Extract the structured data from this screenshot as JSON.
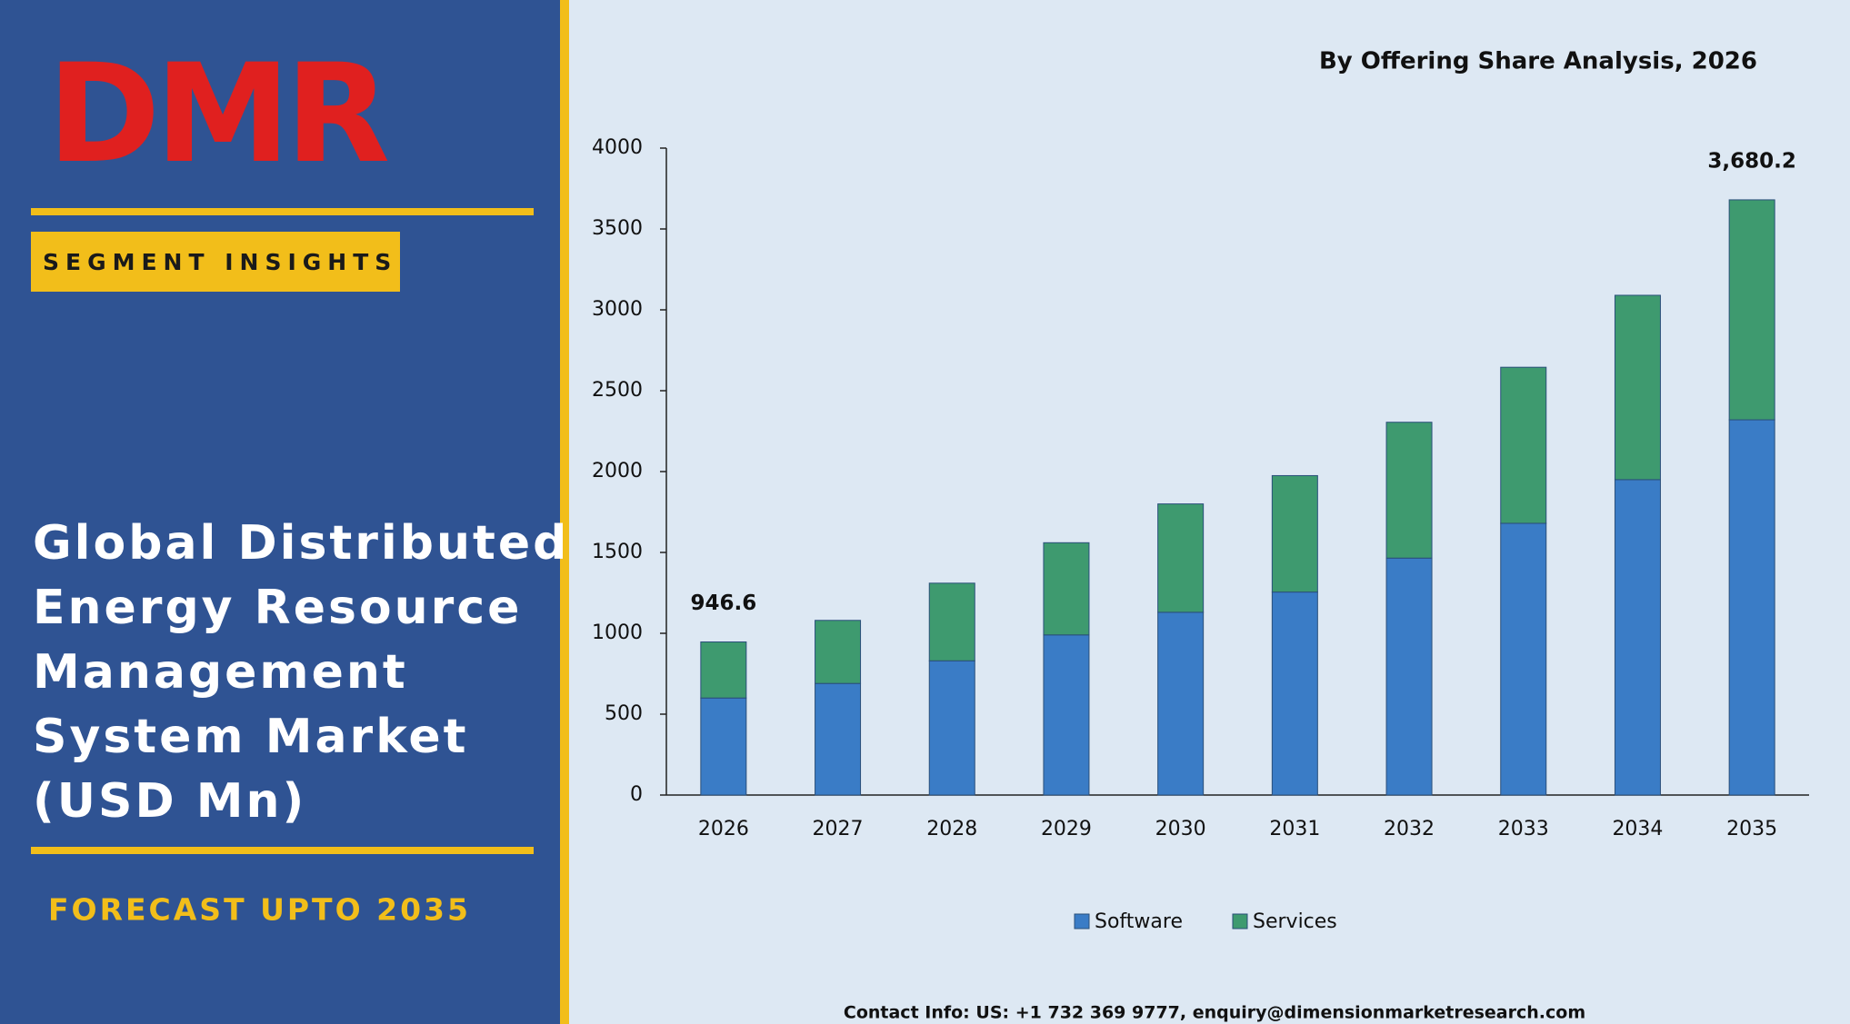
{
  "panel": {
    "logo": "DMR",
    "badge": "SEGMENT INSIGHTS",
    "title_lines": [
      "Global Distributed",
      "Energy Resource",
      "Management",
      "System Market",
      "(USD Mn)"
    ],
    "forecast": "FORECAST UPTO 2035"
  },
  "contact": "Contact Info: US: +1 732 369 9777, enquiry@dimensionmarketresearch.com",
  "chart_data": {
    "type": "stacked_bar",
    "title": "By Offering Share Analysis, 2026",
    "categories": [
      "2026",
      "2027",
      "2028",
      "2029",
      "2030",
      "2031",
      "2032",
      "2033",
      "2034",
      "2035"
    ],
    "series": [
      {
        "name": "Software",
        "color": "#3a7cc6",
        "values": [
          600,
          690,
          830,
          990,
          1130,
          1255,
          1465,
          1680,
          1950,
          2320
        ]
      },
      {
        "name": "Services",
        "color": "#3e9a6f",
        "values": [
          346.6,
          390,
          480,
          570,
          670,
          720,
          840,
          965,
          1140,
          1360.2
        ]
      }
    ],
    "annotations": [
      {
        "category": "2026",
        "value": 946.6,
        "label": "946.6"
      },
      {
        "category": "2035",
        "value": 3680.2,
        "label": "3,680.2"
      }
    ],
    "ylim": [
      0,
      4000
    ],
    "yticks": [
      0,
      500,
      1000,
      1500,
      2000,
      2500,
      3000,
      3500,
      4000
    ],
    "grid": false,
    "legend": "bottom"
  }
}
